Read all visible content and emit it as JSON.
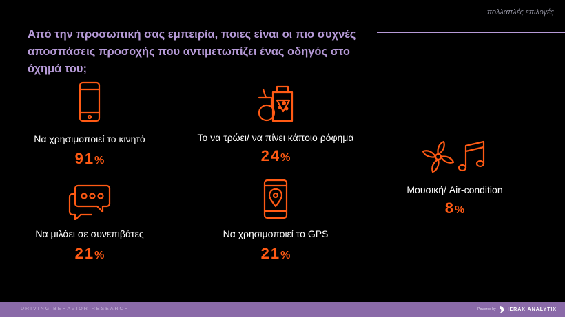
{
  "header": {
    "note": "πολλαπλές επιλογές",
    "title": "Από την προσωπική σας εμπειρία, ποιες είναι οι πιο συχνές αποσπάσεις προσοχής που αντιμετωπίζει ένας οδηγός στο όχημά του;"
  },
  "items": [
    {
      "label": "Να χρησιμοποιεί το κινητό",
      "value": "91",
      "unit": "%",
      "icon": "smartphone-icon"
    },
    {
      "label": "Το να τρώει/ να πίνει κάποιο ρόφημα",
      "value": "24",
      "unit": "%",
      "icon": "food-drink-icon"
    },
    {
      "label": "Να μιλάει σε συνεπιβάτες",
      "value": "21",
      "unit": "%",
      "icon": "chat-bubbles-icon"
    },
    {
      "label": "Να χρησιμοποιεί το GPS",
      "value": "21",
      "unit": "%",
      "icon": "gps-phone-icon"
    },
    {
      "label": "Μουσική/ Air-condition",
      "value": "8",
      "unit": "%",
      "icon": "fan-music-icon"
    }
  ],
  "footer": {
    "left": "DRIVING BEHAVIOR RESEARCH",
    "small": "Powered by",
    "brand": "IERAX ANALYTIX"
  },
  "colors": {
    "accent": "#ff5a14",
    "title": "#b69ad7",
    "footer": "#8a6aa8",
    "background": "#000000"
  }
}
